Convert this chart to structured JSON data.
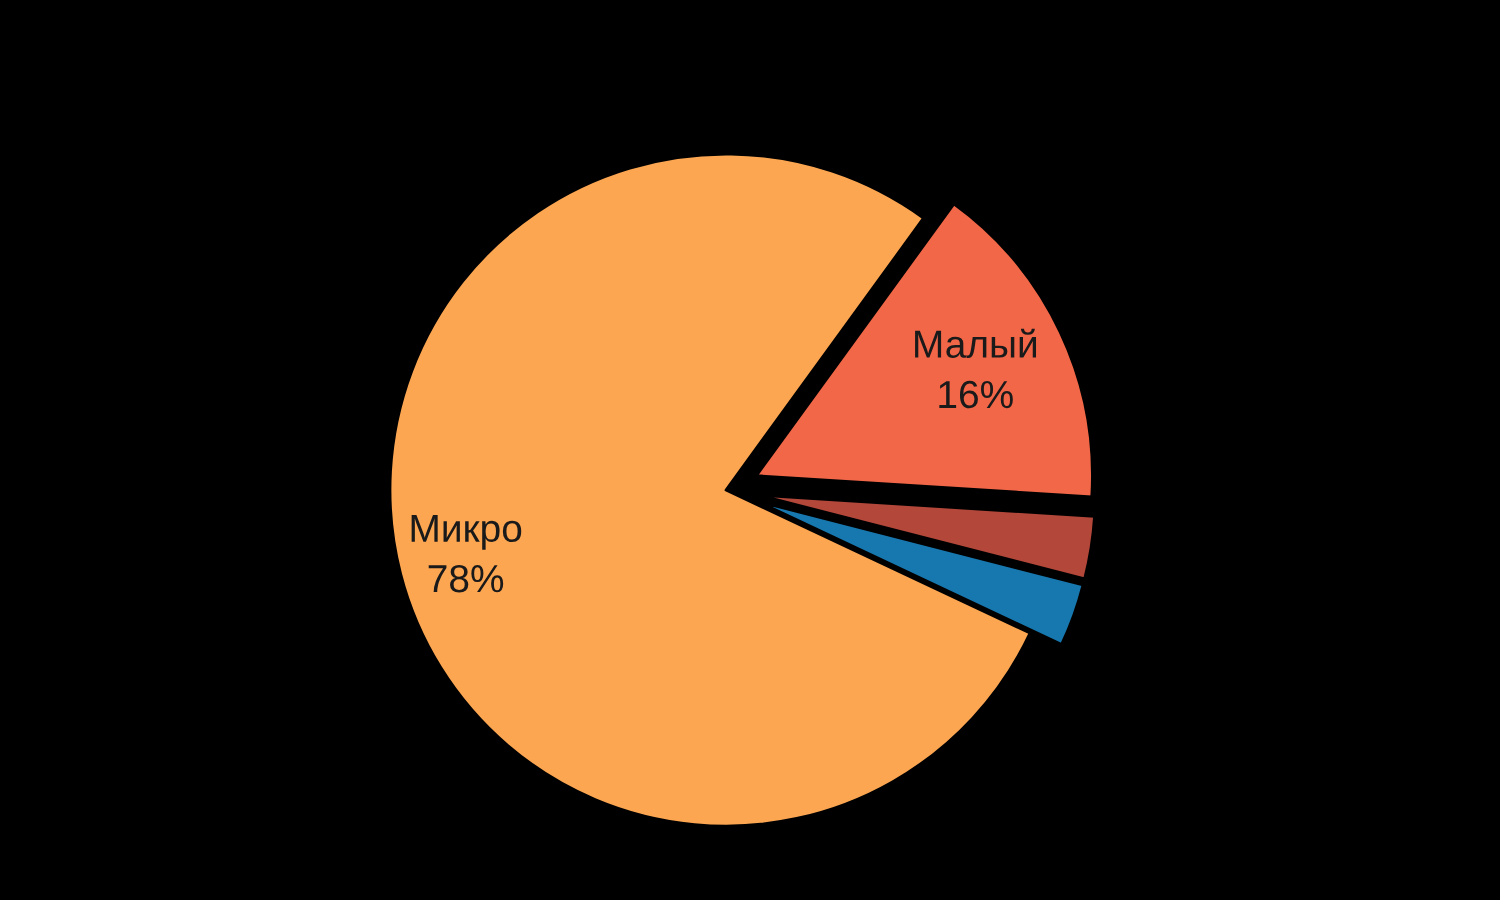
{
  "chart_data": {
    "type": "pie",
    "categories": [
      "Малый",
      null,
      null,
      "Микро"
    ],
    "values": [
      16,
      3,
      3,
      78
    ],
    "colors": [
      "#f26748",
      "#b3473a",
      "#1778b0",
      "#fca651"
    ],
    "value_labels": [
      "16%",
      null,
      null,
      "78%"
    ]
  }
}
